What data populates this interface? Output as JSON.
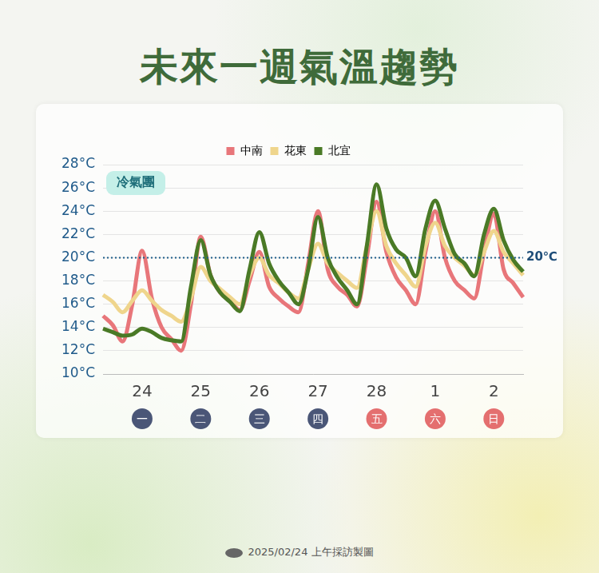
{
  "chart_data": {
    "type": "line",
    "title": "未來一週氣溫趨勢",
    "categories": [
      null,
      null,
      null,
      null,
      "24",
      null,
      null,
      null,
      null,
      null,
      "25",
      null,
      null,
      null,
      null,
      null,
      "26",
      null,
      null,
      null,
      null,
      null,
      "27",
      null,
      null,
      null,
      null,
      null,
      "28",
      null,
      null,
      null,
      null,
      null,
      "1",
      null,
      null,
      null,
      null,
      null,
      "2",
      null,
      null,
      null
    ],
    "series": [
      {
        "name": "中南",
        "color": "#e8767a",
        "values": [
          15,
          14.2,
          12.8,
          16,
          20.6,
          16.5,
          14,
          13,
          12,
          16,
          21.8,
          18.5,
          17,
          16.3,
          15.5,
          18,
          20.5,
          17.5,
          16.5,
          15.8,
          15.3,
          19.5,
          24,
          19,
          17.5,
          16.8,
          15.8,
          20,
          24.8,
          20.5,
          18.3,
          17.2,
          16,
          20.5,
          24,
          20,
          18,
          17.2,
          16.5,
          20.5,
          23.8,
          19,
          17.8,
          16.6
        ]
      },
      {
        "name": "花東",
        "color": "#efd58c",
        "values": [
          16.8,
          16.2,
          15.3,
          16.3,
          17.2,
          16.3,
          15.5,
          15,
          14.5,
          16.5,
          19.2,
          18,
          17.3,
          16.6,
          16,
          18.5,
          20,
          18.5,
          17.8,
          17,
          16.5,
          19,
          21.2,
          19.5,
          18.7,
          18,
          17.4,
          21,
          24,
          21,
          19.5,
          18.5,
          17.5,
          21,
          23,
          21,
          20,
          19.3,
          18.5,
          20.5,
          22.3,
          20.5,
          19.5,
          18.5
        ]
      },
      {
        "name": "北宜",
        "color": "#4a7a26",
        "values": [
          13.9,
          13.6,
          13.3,
          13.4,
          13.9,
          13.6,
          13.1,
          12.9,
          12.8,
          17.5,
          21.5,
          18.5,
          17,
          16.2,
          15.4,
          19,
          22.2,
          19.5,
          18,
          17,
          16,
          19,
          23.5,
          20,
          18.3,
          17.2,
          16,
          21,
          26.3,
          22.5,
          20.7,
          20,
          18.4,
          22.5,
          24.9,
          22.5,
          20.3,
          19.5,
          18.4,
          22,
          24.2,
          21.5,
          19.8,
          18.8
        ]
      }
    ],
    "ylim": [
      10,
      28
    ],
    "yticks": [
      {
        "value": 10,
        "label": "10°C"
      },
      {
        "value": 12,
        "label": "12°C"
      },
      {
        "value": 14,
        "label": "14°C"
      },
      {
        "value": 16,
        "label": "16°C"
      },
      {
        "value": 18,
        "label": "18°C"
      },
      {
        "value": 20,
        "label": "20°C"
      },
      {
        "value": 22,
        "label": "22°C"
      },
      {
        "value": 24,
        "label": "24°C"
      },
      {
        "value": 26,
        "label": "26°C"
      },
      {
        "value": 28,
        "label": "28°C"
      }
    ],
    "grid": true,
    "legend": "top",
    "weekdays": [
      {
        "label": "一",
        "color": "#4a5677"
      },
      {
        "label": "二",
        "color": "#4a5677"
      },
      {
        "label": "三",
        "color": "#4a5677"
      },
      {
        "label": "四",
        "color": "#4a5677"
      },
      {
        "label": "五",
        "color": "#e46f6f"
      },
      {
        "label": "六",
        "color": "#e46f6f"
      },
      {
        "label": "日",
        "color": "#e46f6f"
      }
    ],
    "annotations": [
      {
        "text": "冷氣團"
      },
      {
        "y": 20,
        "text": "20℃"
      }
    ],
    "footer": "2025/02/24 上午採訪製圖"
  }
}
